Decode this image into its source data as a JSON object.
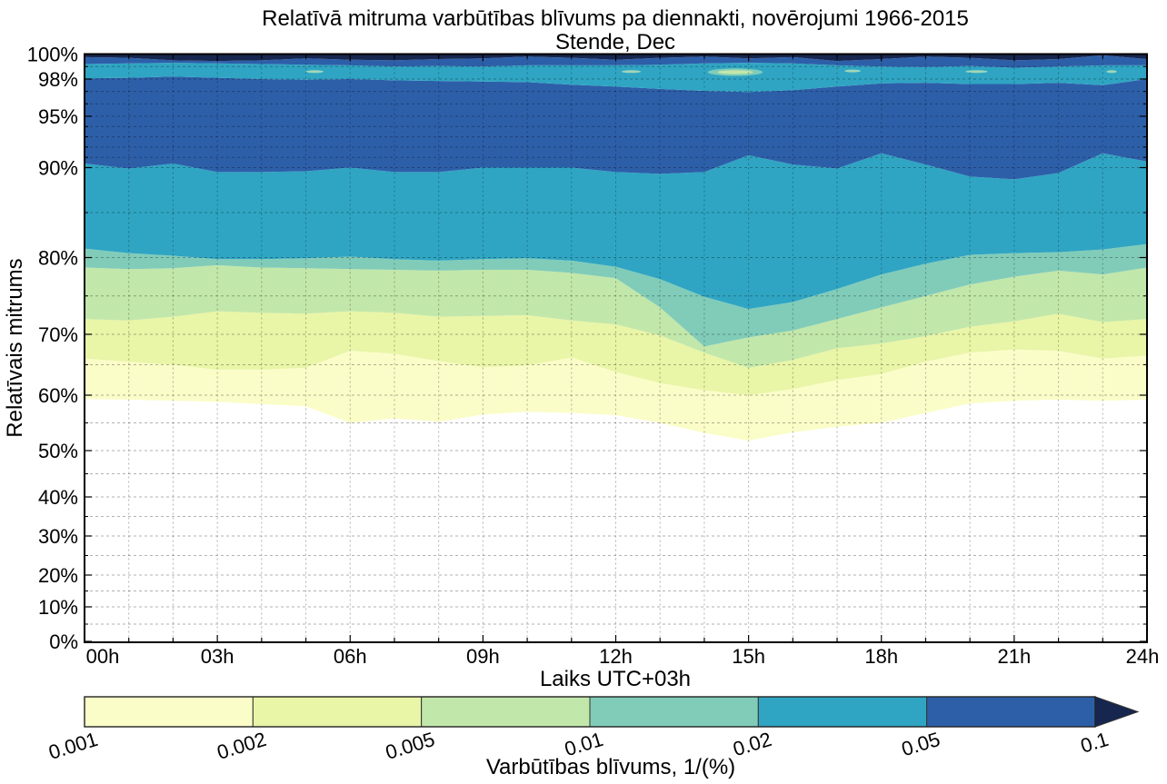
{
  "title": "Relatīvā mitruma varbūtības blīvums pa diennakti, novērojumi 1966-2015",
  "subtitle": "Stende, Dec",
  "x_axis": {
    "label": "Laiks UTC+03h",
    "tick_labels": [
      "00h",
      "03h",
      "06h",
      "09h",
      "12h",
      "15h",
      "18h",
      "21h",
      "24h"
    ],
    "tick_hours": [
      0,
      3,
      6,
      9,
      12,
      15,
      18,
      21,
      24
    ],
    "minor_tick_every_hours": 1
  },
  "y_axis": {
    "label": "Relatīvais mitrums",
    "tick_pcts": [
      0,
      10,
      20,
      30,
      40,
      50,
      60,
      70,
      80,
      90,
      95,
      98,
      100
    ],
    "tick_labels": [
      "0%",
      "10%",
      "20%",
      "30%",
      "40%",
      "50%",
      "60%",
      "70%",
      "80%",
      "90%",
      "95%",
      "98%",
      "100%"
    ],
    "minor_grid_pcts": [
      5,
      10,
      15,
      20,
      25,
      30,
      35,
      40,
      45,
      50,
      55,
      60,
      65,
      70,
      75,
      80,
      85,
      90,
      91,
      92,
      93,
      94,
      95,
      96,
      97,
      98,
      99
    ]
  },
  "colorbar": {
    "label": "Varbūtības blīvums, 1/(%)",
    "tick_labels": [
      "0.001",
      "0.002",
      "0.005",
      "0.01",
      "0.02",
      "0.05",
      "0.1"
    ],
    "segment_colors": [
      "#fbfdc8",
      "#e9f5a7",
      "#c2e7aa",
      "#81ccb9",
      "#2fa5c3",
      "#2d5fa9"
    ],
    "overflow_color": "#16264f"
  },
  "chart_data": {
    "type": "filled_contour",
    "title": "Relatīvā mitruma varbūtības blīvums pa diennakti, novērojumi 1966-2015",
    "subtitle": "Stende, Dec",
    "xlabel": "Laiks UTC+03h",
    "ylabel": "Relatīvais mitrums",
    "units": "1/(%)",
    "x_hours": [
      0,
      1,
      2,
      3,
      4,
      5,
      6,
      7,
      8,
      9,
      10,
      11,
      12,
      13,
      14,
      15,
      16,
      17,
      18,
      19,
      20,
      21,
      22,
      23,
      24
    ],
    "levels": [
      0.001,
      0.002,
      0.005,
      0.01,
      0.02,
      0.05,
      0.1
    ],
    "boundaries": {
      "L1": [
        59.3,
        59.2,
        59.0,
        58.8,
        58.4,
        58.0,
        55.0,
        55.8,
        55.2,
        56.5,
        57.0,
        56.8,
        56.4,
        55.0,
        53.2,
        51.8,
        53.3,
        54.3,
        55.0,
        56.8,
        58.5,
        59.0,
        59.2,
        59.0,
        59.2
      ],
      "L2": [
        66.0,
        65.5,
        65.0,
        64.2,
        64.2,
        64.5,
        67.3,
        66.8,
        65.6,
        64.6,
        64.9,
        66.2,
        63.8,
        62.0,
        60.8,
        60.0,
        61.0,
        62.5,
        63.5,
        65.5,
        67.0,
        67.5,
        67.3,
        66.0,
        66.5
      ],
      "L3": [
        72.0,
        71.8,
        72.3,
        73.0,
        72.8,
        72.7,
        73.0,
        72.8,
        72.3,
        72.4,
        72.5,
        71.8,
        71.3,
        69.8,
        67.0,
        64.5,
        65.8,
        67.7,
        68.5,
        69.7,
        71.0,
        71.7,
        72.7,
        71.6,
        72.0
      ],
      "L4": [
        78.7,
        78.5,
        78.6,
        79.0,
        78.7,
        78.6,
        78.5,
        78.4,
        78.3,
        78.4,
        78.4,
        78.0,
        77.3,
        73.5,
        68.0,
        69.5,
        70.5,
        72.0,
        73.5,
        75.0,
        76.5,
        77.5,
        78.3,
        77.8,
        78.7
      ],
      "L5": [
        81.0,
        80.5,
        80.2,
        79.8,
        79.8,
        79.9,
        80.1,
        79.8,
        79.6,
        79.8,
        79.9,
        79.6,
        78.8,
        77.2,
        74.9,
        73.3,
        74.2,
        75.9,
        77.8,
        79.2,
        80.3,
        80.5,
        80.6,
        80.9,
        81.5
      ],
      "L6": [
        90.4,
        89.9,
        90.4,
        89.5,
        89.5,
        89.6,
        90.0,
        89.5,
        89.5,
        90.0,
        90.0,
        90.0,
        89.5,
        89.3,
        89.5,
        91.2,
        90.3,
        89.9,
        91.4,
        90.3,
        89.0,
        88.7,
        89.4,
        91.4,
        90.6
      ],
      "L7": [
        98.05,
        98.1,
        98.2,
        98.1,
        98.0,
        97.95,
        98.0,
        97.9,
        97.85,
        97.8,
        97.75,
        97.55,
        97.4,
        97.2,
        97.05,
        96.95,
        97.1,
        97.4,
        97.65,
        97.7,
        97.6,
        97.6,
        97.7,
        97.5,
        98.0
      ],
      "L8": [
        99.2,
        99.25,
        99.3,
        99.25,
        99.2,
        99.15,
        99.1,
        99.0,
        99.05,
        99.0,
        99.1,
        99.1,
        99.1,
        99.15,
        99.25,
        99.3,
        99.25,
        99.1,
        99.0,
        98.95,
        99.05,
        98.9,
        99.0,
        99.1,
        99.1
      ],
      "L9": [
        99.75,
        99.7,
        99.5,
        99.45,
        99.5,
        99.65,
        99.55,
        99.5,
        99.6,
        99.65,
        99.8,
        99.7,
        99.55,
        99.7,
        99.8,
        99.65,
        99.75,
        99.45,
        99.6,
        99.8,
        99.7,
        99.5,
        99.6,
        99.9,
        99.6
      ],
      "L10": [
        100,
        100,
        100,
        100,
        100,
        100,
        100,
        100,
        100,
        100,
        100,
        100,
        100,
        100,
        100,
        100,
        100,
        100,
        100,
        100,
        100,
        100,
        100,
        100,
        100
      ]
    },
    "bands": [
      {
        "name": "band-0.001-0.002",
        "lower": "L1",
        "upper": "L2",
        "color": "#fbfdc8"
      },
      {
        "name": "band-0.002-0.005",
        "lower": "L2",
        "upper": "L3",
        "color": "#e9f5a7"
      },
      {
        "name": "band-0.005-0.01",
        "lower": "L3",
        "upper": "L4",
        "color": "#c2e7aa"
      },
      {
        "name": "band-0.01-0.02",
        "lower": "L4",
        "upper": "L5",
        "color": "#81ccb9"
      },
      {
        "name": "band-0.02-0.05",
        "lower": "L5",
        "upper": "L6",
        "color": "#2fa5c3"
      },
      {
        "name": "band-0.05-0.1",
        "lower": "L6",
        "upper": "L7",
        "color": "#2d5fa9"
      },
      {
        "name": "band-top-0.02-0.05",
        "lower": "L7",
        "upper": "L8",
        "color": "#2fa5c3"
      },
      {
        "name": "band-top-0.05-0.1",
        "lower": "L8",
        "upper": "L9",
        "color": "#2d5fa9"
      },
      {
        "name": "band-top-over-0.1",
        "lower": "L9",
        "upper": "L10",
        "color": "#16264f"
      }
    ],
    "islands": [
      {
        "h": 14.7,
        "rh": 98.55,
        "rx_h": 0.62,
        "ry_pct": 0.3,
        "color": "#81ccb9"
      },
      {
        "h": 14.7,
        "rh": 98.55,
        "rx_h": 0.4,
        "ry_pct": 0.16,
        "color": "#c2e7aa"
      },
      {
        "h": 5.2,
        "rh": 98.6,
        "rx_h": 0.2,
        "ry_pct": 0.1,
        "color": "#9fd6bb"
      },
      {
        "h": 12.35,
        "rh": 98.6,
        "rx_h": 0.22,
        "ry_pct": 0.1,
        "color": "#9fd6bb"
      },
      {
        "h": 17.35,
        "rh": 98.65,
        "rx_h": 0.18,
        "ry_pct": 0.1,
        "color": "#9fd6bb"
      },
      {
        "h": 20.15,
        "rh": 98.6,
        "rx_h": 0.25,
        "ry_pct": 0.1,
        "color": "#9fd6bb"
      },
      {
        "h": 23.2,
        "rh": 98.6,
        "rx_h": 0.12,
        "ry_pct": 0.08,
        "color": "#9fd6bb"
      }
    ]
  }
}
